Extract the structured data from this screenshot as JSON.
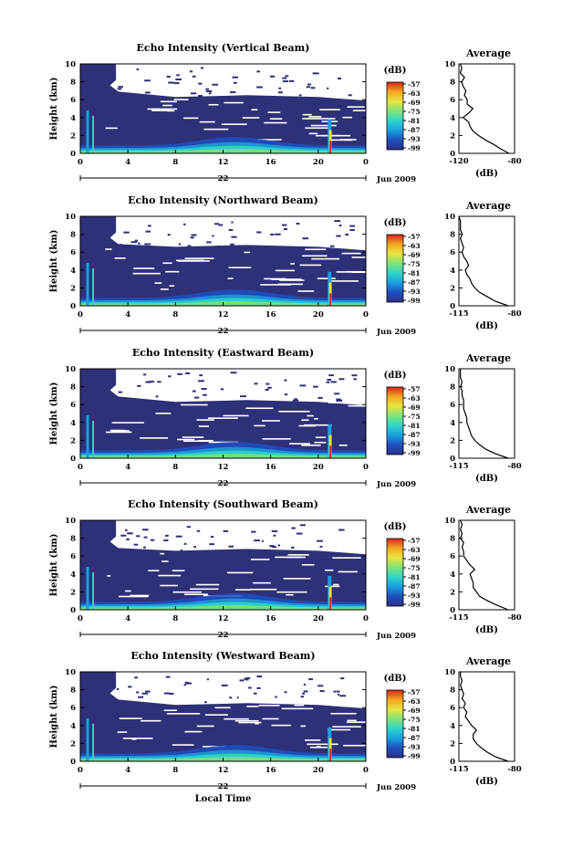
{
  "figure": {
    "xlabel": "Local Time",
    "date_label": "Jun 2009",
    "day_label": "22",
    "ylabel": "Height (km)",
    "colorbar_unit": "(dB)",
    "colorbar_ticks": [
      "-57",
      "-63",
      "-69",
      "-75",
      "-81",
      "-87",
      "-93",
      "-99"
    ],
    "colormap": [
      "#2f2f86",
      "#1f4fbf",
      "#1a9fe0",
      "#2fd6c8",
      "#7ee37a",
      "#e8e640",
      "#f5a623",
      "#d8231f"
    ],
    "background_color": "#2e3078"
  },
  "chart_data": [
    {
      "type": "heatmap",
      "title": "Echo Intensity (Vertical Beam)",
      "xlabel": "",
      "ylabel": "Height (km)",
      "x_ticks": [
        "0",
        "4",
        "8",
        "12",
        "16",
        "20",
        "0"
      ],
      "y_ticks": [
        "0",
        "2",
        "4",
        "6",
        "8",
        "10"
      ],
      "xlim": [
        0,
        24
      ],
      "ylim": [
        0,
        10
      ],
      "colorbar_range": [
        -99,
        -57
      ],
      "avg_profile": {
        "title": "Average",
        "xlabel": "(dB)",
        "x_ticks": [
          "-120",
          "-80"
        ],
        "xlim": [
          -120,
          -80
        ],
        "height": [
          0,
          0.5,
          1,
          1.5,
          2,
          2.5,
          3,
          3.5,
          4,
          4.5,
          5,
          5.5,
          6,
          6.5,
          7,
          7.5,
          8,
          8.5,
          9,
          9.5,
          10
        ],
        "db": [
          -84,
          -90,
          -95,
          -101,
          -106,
          -110,
          -112,
          -113,
          -117,
          -113,
          -110,
          -114,
          -114,
          -116,
          -115,
          -117,
          -118,
          -116,
          -119,
          -118,
          -119
        ]
      }
    },
    {
      "type": "heatmap",
      "title": "Echo Intensity (Northward Beam)",
      "xlabel": "",
      "ylabel": "Height (km)",
      "x_ticks": [
        "0",
        "4",
        "8",
        "12",
        "16",
        "20",
        "0"
      ],
      "y_ticks": [
        "0",
        "2",
        "4",
        "6",
        "8",
        "10"
      ],
      "xlim": [
        0,
        24
      ],
      "ylim": [
        0,
        10
      ],
      "colorbar_range": [
        -99,
        -57
      ],
      "avg_profile": {
        "title": "Average",
        "xlabel": "(dB)",
        "x_ticks": [
          "-115",
          "-80"
        ],
        "xlim": [
          -115,
          -80
        ],
        "height": [
          0,
          0.5,
          1,
          1.5,
          2,
          2.5,
          3,
          3.5,
          4,
          4.5,
          5,
          5.5,
          6,
          6.5,
          7,
          7.5,
          8,
          8.5,
          9,
          9.5,
          10
        ],
        "db": [
          -84,
          -92,
          -97,
          -102,
          -105,
          -107,
          -108,
          -110,
          -111,
          -109,
          -110,
          -112,
          -113,
          -112,
          -113,
          -114,
          -113,
          -114,
          -114,
          -114,
          -115
        ]
      }
    },
    {
      "type": "heatmap",
      "title": "Echo Intensity (Eastward Beam)",
      "xlabel": "",
      "ylabel": "Height (km)",
      "x_ticks": [
        "0",
        "4",
        "8",
        "12",
        "16",
        "20",
        "0"
      ],
      "y_ticks": [
        "0",
        "2",
        "4",
        "6",
        "8",
        "10"
      ],
      "xlim": [
        0,
        24
      ],
      "ylim": [
        0,
        10
      ],
      "colorbar_range": [
        -99,
        -57
      ],
      "avg_profile": {
        "title": "Average",
        "xlabel": "(dB)",
        "x_ticks": [
          "-115",
          "-80"
        ],
        "xlim": [
          -115,
          -80
        ],
        "height": [
          0,
          0.5,
          1,
          1.5,
          2,
          2.5,
          3,
          3.5,
          4,
          4.5,
          5,
          5.5,
          6,
          6.5,
          7,
          7.5,
          8,
          8.5,
          9,
          9.5,
          10
        ],
        "db": [
          -84,
          -92,
          -98,
          -102,
          -105,
          -107,
          -108,
          -109,
          -110,
          -110,
          -111,
          -112,
          -112,
          -112,
          -113,
          -113,
          -114,
          -113,
          -114,
          -114,
          -114
        ]
      }
    },
    {
      "type": "heatmap",
      "title": "Echo Intensity (Southward Beam)",
      "xlabel": "",
      "ylabel": "Height (km)",
      "x_ticks": [
        "0",
        "4",
        "8",
        "12",
        "16",
        "20",
        "0"
      ],
      "y_ticks": [
        "0",
        "2",
        "4",
        "6",
        "8",
        "10"
      ],
      "xlim": [
        0,
        24
      ],
      "ylim": [
        0,
        10
      ],
      "colorbar_range": [
        -99,
        -57
      ],
      "avg_profile": {
        "title": "Average",
        "xlabel": "(dB)",
        "x_ticks": [
          "-115",
          "-80"
        ],
        "xlim": [
          -115,
          -80
        ],
        "height": [
          0,
          0.5,
          1,
          1.5,
          2,
          2.5,
          3,
          3.5,
          4,
          4.5,
          5,
          5.5,
          6,
          6.5,
          7,
          7.5,
          8,
          8.5,
          9,
          9.5,
          10
        ],
        "db": [
          -84,
          -91,
          -97,
          -102,
          -104,
          -106,
          -106,
          -107,
          -108,
          -105,
          -108,
          -110,
          -112,
          -112,
          -113,
          -112,
          -114,
          -113,
          -114,
          -113,
          -114
        ]
      }
    },
    {
      "type": "heatmap",
      "title": "Echo Intensity (Westward Beam)",
      "xlabel": "Local Time",
      "ylabel": "Height (km)",
      "x_ticks": [
        "0",
        "4",
        "8",
        "12",
        "16",
        "20",
        "0"
      ],
      "y_ticks": [
        "0",
        "2",
        "4",
        "6",
        "8",
        "10"
      ],
      "xlim": [
        0,
        24
      ],
      "ylim": [
        0,
        10
      ],
      "colorbar_range": [
        -99,
        -57
      ],
      "avg_profile": {
        "title": "Average",
        "xlabel": "(dB)",
        "x_ticks": [
          "-115",
          "-80"
        ],
        "xlim": [
          -115,
          -80
        ],
        "height": [
          0,
          0.5,
          1,
          1.5,
          2,
          2.5,
          3,
          3.5,
          4,
          4.5,
          5,
          5.5,
          6,
          6.5,
          7,
          7.5,
          8,
          8.5,
          9,
          9.5,
          10
        ],
        "db": [
          -84,
          -92,
          -97,
          -101,
          -104,
          -106,
          -106,
          -104,
          -107,
          -109,
          -111,
          -110,
          -112,
          -111,
          -113,
          -112,
          -113,
          -114,
          -113,
          -114,
          -114
        ]
      }
    }
  ]
}
